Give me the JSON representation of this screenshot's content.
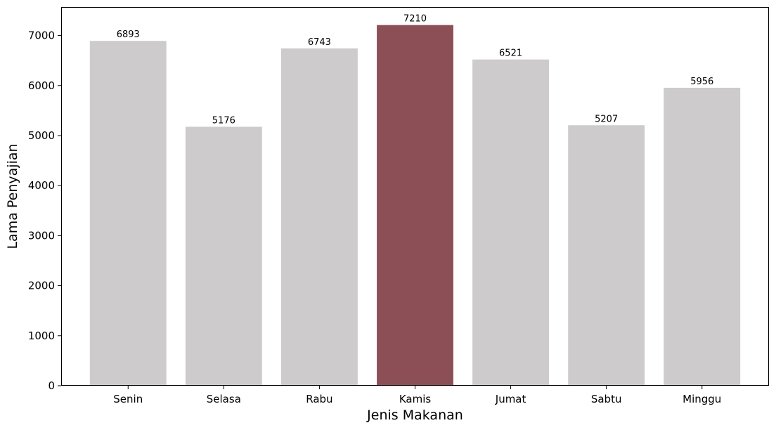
{
  "chart_data": {
    "type": "bar",
    "title": "",
    "xlabel": "Jenis Makanan",
    "ylabel": "Lama Penyajian",
    "categories": [
      "Senin",
      "Selasa",
      "Rabu",
      "Kamis",
      "Jumat",
      "Sabtu",
      "Minggu"
    ],
    "values": [
      6893,
      5176,
      6743,
      7210,
      6521,
      5207,
      5956
    ],
    "data_labels": [
      "6893",
      "5176",
      "6743",
      "7210",
      "6521",
      "5207",
      "5956"
    ],
    "ylim": [
      0,
      7570
    ],
    "yticks": [
      0,
      1000,
      2000,
      3000,
      4000,
      5000,
      6000,
      7000
    ],
    "grid": false,
    "legend": "none",
    "colors": {
      "bar_default": "#cdcbcc",
      "bar_highlight": "#8c4f55",
      "highlight_category": "Kamis",
      "axis": "#000000"
    }
  }
}
